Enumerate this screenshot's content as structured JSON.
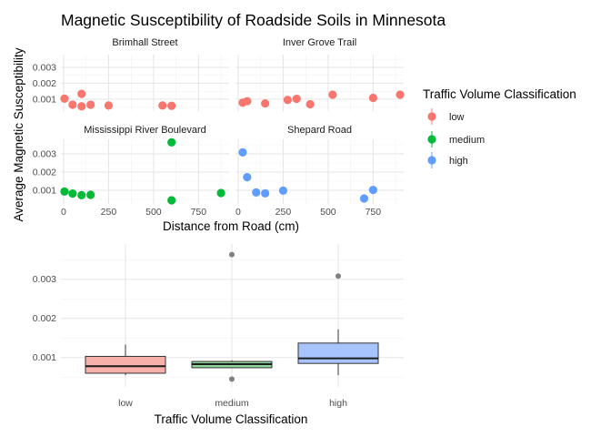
{
  "colors": {
    "low": "#F8766D",
    "medium": "#00BA38",
    "high": "#619CFF",
    "grid_major": "#E5E5E5",
    "grid_minor": "#F2F2F2",
    "text_dark": "#1A1A1A",
    "text_axis": "#4D4D4D",
    "outlier": "#7F7F7F"
  },
  "chart_data": [
    {
      "type": "scatter",
      "title": "Magnetic Susceptibility of Roadside Soils in Minnesota",
      "xlabel": "Distance from Road (cm)",
      "ylabel": "Average Magnetic Susceptibility",
      "xlim": [
        -15,
        920
      ],
      "ylim": [
        0.00025,
        0.0038
      ],
      "x_ticks": [
        0,
        250,
        500,
        750
      ],
      "x_tick_labels": [
        "0",
        "250",
        "500",
        "750"
      ],
      "y_ticks": [
        0.001,
        0.002,
        0.003
      ],
      "y_tick_labels": [
        "0.001",
        "0.002",
        "0.003"
      ],
      "grid": true,
      "legend": {
        "title": "Traffic Volume Classification",
        "position": "right",
        "entries": [
          "low",
          "medium",
          "high"
        ]
      },
      "panels": [
        {
          "name": "Brimhall Street",
          "traffic": "low",
          "points": [
            {
              "x": 5,
              "y": 0.00103
            },
            {
              "x": 50,
              "y": 0.00065
            },
            {
              "x": 100,
              "y": 0.00133
            },
            {
              "x": 100,
              "y": 0.00055
            },
            {
              "x": 150,
              "y": 0.00065
            },
            {
              "x": 250,
              "y": 0.0006
            },
            {
              "x": 550,
              "y": 0.0006
            },
            {
              "x": 600,
              "y": 0.00058
            }
          ]
        },
        {
          "name": "Inver Grove Trail",
          "traffic": "low",
          "points": [
            {
              "x": 25,
              "y": 0.00078
            },
            {
              "x": 50,
              "y": 0.00087
            },
            {
              "x": 150,
              "y": 0.00073
            },
            {
              "x": 275,
              "y": 0.00095
            },
            {
              "x": 325,
              "y": 0.00102
            },
            {
              "x": 400,
              "y": 0.00068
            },
            {
              "x": 525,
              "y": 0.00128
            },
            {
              "x": 750,
              "y": 0.00108
            },
            {
              "x": 900,
              "y": 0.00128
            }
          ]
        },
        {
          "name": "Mississippi River Boulevard",
          "traffic": "medium",
          "points": [
            {
              "x": 5,
              "y": 0.00093
            },
            {
              "x": 50,
              "y": 0.00082
            },
            {
              "x": 100,
              "y": 0.00073
            },
            {
              "x": 150,
              "y": 0.00075
            },
            {
              "x": 600,
              "y": 0.00363
            },
            {
              "x": 600,
              "y": 0.00045
            },
            {
              "x": 875,
              "y": 0.00085
            }
          ]
        },
        {
          "name": "Shepard Road",
          "traffic": "high",
          "points": [
            {
              "x": 25,
              "y": 0.00308
            },
            {
              "x": 50,
              "y": 0.00172
            },
            {
              "x": 100,
              "y": 0.00088
            },
            {
              "x": 150,
              "y": 0.00083
            },
            {
              "x": 250,
              "y": 0.00098
            },
            {
              "x": 700,
              "y": 0.00055
            },
            {
              "x": 750,
              "y": 0.00102
            }
          ]
        }
      ]
    },
    {
      "type": "box",
      "xlabel": "Traffic Volume Classification",
      "ylabel": "",
      "ylim": [
        0.00025,
        0.0039
      ],
      "y_ticks": [
        0.001,
        0.002,
        0.003
      ],
      "y_tick_labels": [
        "0.001",
        "0.002",
        "0.003"
      ],
      "categories": [
        "low",
        "medium",
        "high"
      ],
      "boxes": [
        {
          "category": "low",
          "whisker_low": 0.00055,
          "q1": 0.0006,
          "median": 0.00078,
          "q3": 0.00103,
          "whisker_high": 0.00133,
          "outliers": []
        },
        {
          "category": "medium",
          "whisker_low": 0.00073,
          "q1": 0.00074,
          "median": 0.00083,
          "q3": 0.0009,
          "whisker_high": 0.00093,
          "outliers": [
            0.00363,
            0.00045
          ]
        },
        {
          "category": "high",
          "whisker_low": 0.00055,
          "q1": 0.00085,
          "median": 0.00098,
          "q3": 0.00137,
          "whisker_high": 0.00172,
          "outliers": [
            0.00308
          ]
        }
      ]
    }
  ]
}
